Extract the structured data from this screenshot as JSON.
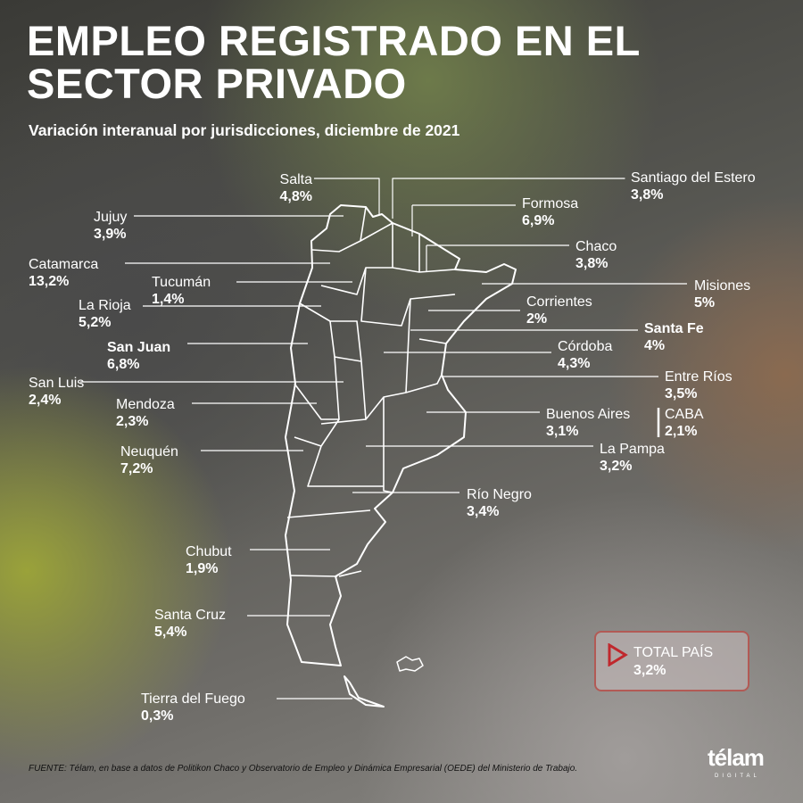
{
  "title": "EMPLEO REGISTRADO EN EL SECTOR PRIVADO",
  "title_line1": "EMPLEO REGISTRADO EN EL",
  "title_line2": "SECTOR PRIVADO",
  "subtitle": "Variación interanual por jurisdicciones, diciembre de 2021",
  "provinces": [
    {
      "name": "Salta",
      "value": "4,8%"
    },
    {
      "name": "Santiago del Estero",
      "value": "3,8%"
    },
    {
      "name": "Jujuy",
      "value": "3,9%"
    },
    {
      "name": "Formosa",
      "value": "6,9%"
    },
    {
      "name": "Chaco",
      "value": "3,8%"
    },
    {
      "name": "Catamarca",
      "value": "13,2%"
    },
    {
      "name": "Tucumán",
      "value": "1,4%"
    },
    {
      "name": "Misiones",
      "value": "5%"
    },
    {
      "name": "La Rioja",
      "value": "5,2%"
    },
    {
      "name": "Corrientes",
      "value": "2%"
    },
    {
      "name": "Santa Fe",
      "value": "4%"
    },
    {
      "name": "San Juan",
      "value": "6,8%"
    },
    {
      "name": "Córdoba",
      "value": "4,3%"
    },
    {
      "name": "San Luis",
      "value": "2,4%"
    },
    {
      "name": "Entre Ríos",
      "value": "3,5%"
    },
    {
      "name": "Mendoza",
      "value": "2,3%"
    },
    {
      "name": "Buenos Aires",
      "value": "3,1%"
    },
    {
      "name": "CABA",
      "value": "2,1%"
    },
    {
      "name": "La Pampa",
      "value": "3,2%"
    },
    {
      "name": "Neuquén",
      "value": "7,2%"
    },
    {
      "name": "Río Negro",
      "value": "3,4%"
    },
    {
      "name": "Chubut",
      "value": "1,9%"
    },
    {
      "name": "Santa Cruz",
      "value": "5,4%"
    },
    {
      "name": "Tierra del Fuego",
      "value": "0,3%"
    }
  ],
  "total": {
    "label": "TOTAL PAÍS",
    "value": "3,2%"
  },
  "source": "FUENTE: Télam, en base a datos de Politikon Chaco y Observatorio de Empleo y Dinámica Empresarial (OEDE) del Ministerio de Trabajo.",
  "logo": {
    "name": "télam",
    "sub": "DIGITAL"
  },
  "colors": {
    "accent": "#c0282d",
    "text": "#ffffff"
  }
}
